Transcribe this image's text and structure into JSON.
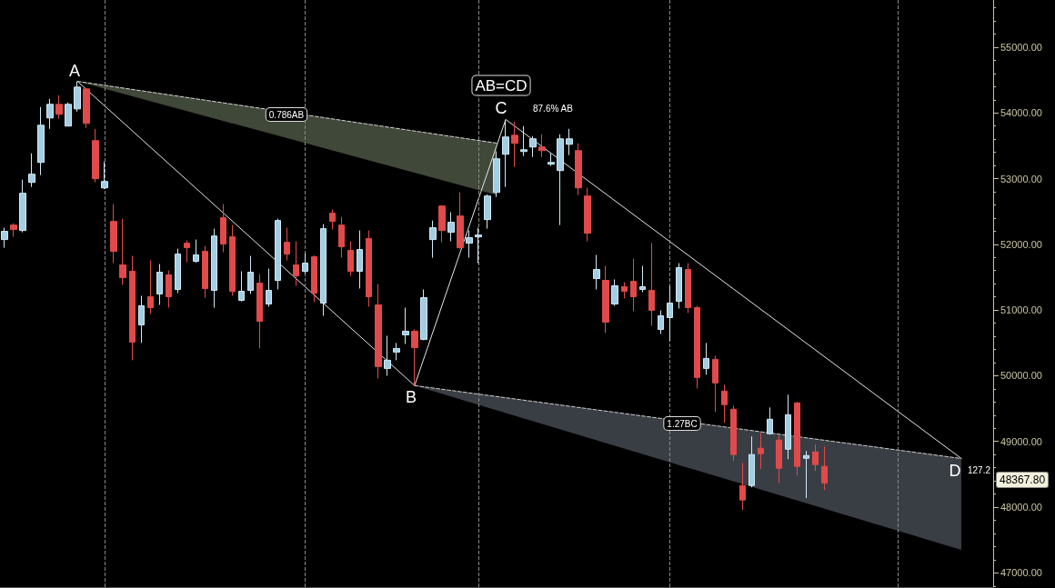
{
  "chart_data": {
    "type": "candlestick",
    "categories": [
      null,
      null,
      null,
      null,
      null,
      null,
      null,
      null,
      null,
      null,
      null,
      null,
      null,
      null,
      null,
      null,
      null,
      null,
      null,
      null,
      null,
      null,
      null,
      null,
      null,
      null,
      null,
      null,
      null,
      null,
      null,
      null,
      null,
      null,
      null,
      null,
      null,
      null,
      null,
      null,
      null,
      null,
      null,
      null,
      null,
      null,
      null,
      null,
      null,
      null,
      null,
      null,
      null,
      null,
      null,
      null,
      null,
      null,
      null,
      null,
      null,
      null,
      null,
      null,
      null,
      null,
      null,
      null,
      null,
      null,
      null,
      null,
      null,
      null,
      null,
      null,
      null,
      null,
      null,
      null,
      null,
      null,
      null,
      null,
      null,
      null,
      null,
      null,
      null,
      null,
      null,
      null,
      null,
      null,
      null,
      null,
      null,
      null,
      null,
      null,
      null,
      null,
      null,
      null,
      null,
      null,
      null,
      null,
      null
    ],
    "ohlc": [
      [
        52072,
        52252,
        51948,
        52197
      ],
      [
        52293,
        52321,
        52114,
        52224
      ],
      [
        52210,
        52984,
        52183,
        52777
      ],
      [
        52942,
        53384,
        52873,
        53067
      ],
      [
        53246,
        54089,
        53053,
        53812
      ],
      [
        53923,
        54213,
        53757,
        54130
      ],
      [
        54130,
        54268,
        53909,
        53978
      ],
      [
        53799,
        54158,
        53799,
        54130
      ],
      [
        54061,
        54475,
        54019,
        54392
      ],
      [
        54365,
        54380,
        53771,
        53840
      ],
      [
        53578,
        53757,
        52942,
        52998
      ],
      [
        52859,
        53260,
        52840,
        52956
      ],
      [
        52348,
        52611,
        51713,
        51893
      ],
      [
        51686,
        52390,
        51382,
        51492
      ],
      [
        51589,
        51824,
        50236,
        50512
      ],
      [
        50774,
        51216,
        50498,
        51064
      ],
      [
        51202,
        51755,
        50940,
        51036
      ],
      [
        51244,
        51699,
        51078,
        51575
      ],
      [
        51534,
        51603,
        51036,
        51202
      ],
      [
        51313,
        51934,
        51257,
        51851
      ],
      [
        52017,
        52058,
        51727,
        51948
      ],
      [
        51741,
        52072,
        51720,
        51838
      ],
      [
        51893,
        51976,
        51188,
        51327
      ],
      [
        51299,
        52238,
        51036,
        52127
      ],
      [
        52404,
        52611,
        51879,
        52003
      ],
      [
        52114,
        52293,
        51216,
        51285
      ],
      [
        51147,
        51589,
        51130,
        51285
      ],
      [
        51299,
        51824,
        51244,
        51575
      ],
      [
        51409,
        51548,
        50415,
        50829
      ],
      [
        51092,
        51630,
        51050,
        51299
      ],
      [
        51451,
        52390,
        51313,
        52362
      ],
      [
        52031,
        52252,
        51755,
        51851
      ],
      [
        51686,
        52045,
        51368,
        51520
      ],
      [
        51589,
        51865,
        51548,
        51713
      ],
      [
        51810,
        51830,
        51119,
        51257
      ],
      [
        51106,
        52307,
        50912,
        52238
      ],
      [
        52473,
        52528,
        52224,
        52348
      ],
      [
        52293,
        52418,
        51796,
        51962
      ],
      [
        51907,
        52045,
        51520,
        51589
      ],
      [
        51589,
        52210,
        51327,
        51920
      ],
      [
        52086,
        52210,
        51050,
        51202
      ],
      [
        51078,
        51396,
        49959,
        50139
      ],
      [
        50111,
        50608,
        49999,
        50236
      ],
      [
        50360,
        50498,
        50236,
        50415
      ],
      [
        50622,
        51036,
        50484,
        50677
      ],
      [
        50677,
        50705,
        49849,
        50429
      ],
      [
        50553,
        51313,
        50540,
        51188
      ],
      [
        52072,
        52362,
        51796,
        52252
      ],
      [
        52583,
        52597,
        52031,
        52210
      ],
      [
        52183,
        52487,
        52045,
        52335
      ],
      [
        52431,
        52790,
        51930,
        51948
      ],
      [
        52017,
        52210,
        51796,
        52100
      ],
      [
        52114,
        52252,
        51713,
        52141
      ],
      [
        52376,
        52760,
        52238,
        52735
      ],
      [
        52790,
        53412,
        52721,
        53301
      ],
      [
        53370,
        53895,
        52873,
        53633
      ],
      [
        53660,
        53868,
        53177,
        53536
      ],
      [
        53412,
        53799,
        53343,
        53439
      ],
      [
        53481,
        53647,
        53329,
        53605
      ],
      [
        53481,
        53674,
        53329,
        53426
      ],
      [
        53219,
        53384,
        53191,
        53246
      ],
      [
        53122,
        53674,
        52293,
        53605
      ],
      [
        53522,
        53757,
        53357,
        53605
      ],
      [
        53426,
        53536,
        52749,
        52859
      ],
      [
        52735,
        52859,
        52045,
        52169
      ],
      [
        51478,
        51838,
        51313,
        51616
      ],
      [
        51451,
        51672,
        50650,
        50816
      ],
      [
        51092,
        51465,
        51064,
        51368
      ],
      [
        51354,
        51423,
        51175,
        51285
      ],
      [
        51437,
        51782,
        50981,
        51202
      ],
      [
        51313,
        51672,
        51271,
        51354
      ],
      [
        51299,
        52017,
        50760,
        50995
      ],
      [
        50705,
        50995,
        50636,
        50912
      ],
      [
        50885,
        51368,
        50526,
        51106
      ],
      [
        51133,
        51713,
        51023,
        51644
      ],
      [
        51616,
        51713,
        50954,
        51036
      ],
      [
        51036,
        51064,
        49807,
        49973
      ],
      [
        50111,
        50498,
        50015,
        50263
      ],
      [
        50249,
        50305,
        49448,
        49890
      ],
      [
        49766,
        49863,
        49283,
        49559
      ],
      [
        49490,
        49545,
        48703,
        48800
      ],
      [
        48330,
        48675,
        47957,
        48109
      ],
      [
        48330,
        49075,
        48302,
        48800
      ],
      [
        48896,
        49131,
        48578,
        48813
      ],
      [
        49117,
        49517,
        49103,
        49338
      ],
      [
        49020,
        49089,
        48371,
        48592
      ],
      [
        48882,
        49711,
        48730,
        49407
      ],
      [
        49586,
        49600,
        48482,
        48620
      ],
      [
        48744,
        48855,
        48137,
        48785
      ],
      [
        48841,
        48951,
        48551,
        48647
      ],
      [
        48620,
        48924,
        48261,
        48367.8
      ],
      null,
      null,
      null,
      null,
      null,
      null,
      null,
      null,
      null,
      null,
      null,
      null,
      null,
      null,
      null,
      null,
      null,
      null
    ],
    "series": [
      {
        "type": "line",
        "color": "#e6e6e6",
        "values": [
          null,
          null,
          null,
          null,
          null,
          null,
          null,
          null,
          54480,
          null,
          null,
          null,
          null,
          null,
          null,
          null,
          null,
          null,
          null,
          null,
          null,
          null,
          null,
          null,
          null,
          null,
          null,
          null,
          null,
          null,
          null,
          null,
          null,
          null,
          null,
          null,
          null,
          null,
          null,
          null,
          null,
          null,
          null,
          null,
          null,
          49850,
          null,
          null,
          null,
          null,
          null,
          null,
          null,
          null,
          null,
          53900,
          null,
          null,
          null,
          null,
          null,
          null,
          null,
          null,
          null,
          null,
          null,
          null,
          null,
          null,
          null,
          null,
          null,
          null,
          null,
          null,
          null,
          null,
          null,
          null,
          null,
          null,
          null,
          null,
          null,
          null,
          null,
          null,
          null,
          null,
          null,
          null,
          null,
          null,
          null,
          null,
          null,
          null,
          null,
          null,
          null,
          null,
          null,
          null,
          null,
          48740,
          null,
          null,
          null
        ]
      },
      {
        "type": "line",
        "line_style": "dashed",
        "color": "#d8d8d8",
        "values": [
          null,
          null,
          null,
          null,
          null,
          null,
          null,
          null,
          54480,
          null,
          null,
          null,
          null,
          null,
          null,
          null,
          null,
          null,
          null,
          null,
          null,
          null,
          null,
          null,
          null,
          null,
          null,
          null,
          null,
          null,
          null,
          null,
          null,
          null,
          null,
          null,
          null,
          null,
          null,
          null,
          null,
          null,
          null,
          null,
          null,
          null,
          null,
          null,
          null,
          null,
          null,
          null,
          null,
          null,
          53540,
          null,
          null,
          null,
          null,
          null,
          null,
          null,
          null,
          null,
          null,
          null,
          null,
          null,
          null,
          null,
          null,
          null,
          null,
          null,
          null,
          null,
          null,
          null,
          null,
          null,
          null,
          null,
          null,
          null,
          null,
          null,
          null,
          null,
          null,
          null,
          null,
          null,
          null,
          null,
          null,
          null,
          null,
          null,
          null,
          null,
          null,
          null,
          null,
          null,
          null,
          null,
          null,
          null,
          null
        ],
        "upper": [
          null,
          null,
          null,
          null,
          null,
          null,
          null,
          null,
          54480,
          null,
          null,
          null,
          null,
          null,
          null,
          null,
          null,
          null,
          null,
          null,
          null,
          null,
          null,
          null,
          null,
          null,
          null,
          null,
          null,
          null,
          null,
          null,
          null,
          null,
          null,
          null,
          null,
          null,
          null,
          null,
          null,
          null,
          null,
          null,
          null,
          null,
          null,
          null,
          null,
          null,
          null,
          null,
          null,
          null,
          53540,
          null,
          null,
          null,
          null,
          null,
          null,
          null,
          null,
          null,
          null,
          null,
          null,
          null,
          null,
          null,
          null,
          null,
          null,
          null,
          null,
          null,
          null,
          null,
          null,
          null,
          null,
          null,
          null,
          null,
          null,
          null,
          null,
          null,
          null,
          null,
          null,
          null,
          null,
          null,
          null,
          null,
          null,
          null,
          null,
          null,
          null,
          null,
          null,
          null,
          null,
          null,
          null,
          null,
          null
        ],
        "lower": [
          null,
          null,
          null,
          null,
          null,
          null,
          null,
          null,
          54480,
          null,
          null,
          null,
          null,
          null,
          null,
          null,
          null,
          null,
          null,
          null,
          null,
          null,
          null,
          null,
          null,
          null,
          null,
          null,
          null,
          null,
          null,
          null,
          null,
          null,
          null,
          null,
          null,
          null,
          null,
          null,
          null,
          null,
          null,
          null,
          null,
          null,
          null,
          null,
          null,
          null,
          null,
          null,
          null,
          null,
          52750,
          null,
          null,
          null,
          null,
          null,
          null,
          null,
          null,
          null,
          null,
          null,
          null,
          null,
          null,
          null,
          null,
          null,
          null,
          null,
          null,
          null,
          null,
          null,
          null,
          null,
          null,
          null,
          null,
          null,
          null,
          null,
          null,
          null,
          null,
          null,
          null,
          null,
          null,
          null,
          null,
          null,
          null,
          null,
          null,
          null,
          null,
          null,
          null,
          null,
          null,
          null,
          null,
          null,
          null
        ]
      },
      {
        "type": "line",
        "line_style": "dashed",
        "color": "#d0d0d0",
        "values": [
          null,
          null,
          null,
          null,
          null,
          null,
          null,
          null,
          null,
          null,
          null,
          null,
          null,
          null,
          null,
          null,
          null,
          null,
          null,
          null,
          null,
          null,
          null,
          null,
          null,
          null,
          null,
          null,
          null,
          null,
          null,
          null,
          null,
          null,
          null,
          null,
          null,
          null,
          null,
          null,
          null,
          null,
          null,
          null,
          null,
          49850,
          null,
          null,
          null,
          null,
          null,
          null,
          null,
          null,
          null,
          null,
          null,
          null,
          null,
          null,
          null,
          null,
          null,
          null,
          null,
          null,
          null,
          null,
          null,
          null,
          null,
          null,
          null,
          null,
          null,
          null,
          null,
          null,
          null,
          null,
          null,
          null,
          null,
          null,
          null,
          null,
          null,
          null,
          null,
          null,
          null,
          null,
          null,
          null,
          null,
          null,
          null,
          null,
          null,
          null,
          null,
          null,
          null,
          null,
          null,
          48740,
          null,
          null,
          null
        ],
        "upper": [
          null,
          null,
          null,
          null,
          null,
          null,
          null,
          null,
          null,
          null,
          null,
          null,
          null,
          null,
          null,
          null,
          null,
          null,
          null,
          null,
          null,
          null,
          null,
          null,
          null,
          null,
          null,
          null,
          null,
          null,
          null,
          null,
          null,
          null,
          null,
          null,
          null,
          null,
          null,
          null,
          null,
          null,
          null,
          null,
          null,
          49850,
          null,
          null,
          null,
          null,
          null,
          null,
          null,
          null,
          null,
          null,
          null,
          null,
          null,
          null,
          null,
          null,
          null,
          null,
          null,
          null,
          null,
          null,
          null,
          null,
          null,
          null,
          null,
          null,
          null,
          null,
          null,
          null,
          null,
          null,
          null,
          null,
          null,
          null,
          null,
          null,
          null,
          null,
          null,
          null,
          null,
          null,
          null,
          null,
          null,
          null,
          null,
          null,
          null,
          null,
          null,
          null,
          null,
          null,
          null,
          48740,
          null,
          null,
          null
        ],
        "lower": [
          null,
          null,
          null,
          null,
          null,
          null,
          null,
          null,
          null,
          null,
          null,
          null,
          null,
          null,
          null,
          null,
          null,
          null,
          null,
          null,
          null,
          null,
          null,
          null,
          null,
          null,
          null,
          null,
          null,
          null,
          null,
          null,
          null,
          null,
          null,
          null,
          null,
          null,
          null,
          null,
          null,
          null,
          null,
          null,
          null,
          49850,
          null,
          null,
          null,
          null,
          null,
          null,
          null,
          null,
          null,
          null,
          null,
          null,
          null,
          null,
          null,
          null,
          null,
          null,
          null,
          null,
          null,
          null,
          null,
          null,
          null,
          null,
          null,
          null,
          null,
          null,
          null,
          null,
          null,
          null,
          null,
          null,
          null,
          null,
          null,
          null,
          null,
          null,
          null,
          null,
          null,
          null,
          null,
          null,
          null,
          null,
          null,
          null,
          null,
          null,
          null,
          null,
          null,
          null,
          null,
          47350,
          null,
          null,
          null
        ]
      }
    ],
    "ylim": [
      46783,
      55718
    ],
    "yticks": [
      {
        "value": 47000,
        "label": "47000.00"
      },
      {
        "value": 48000,
        "label": "48000.00"
      },
      {
        "value": 49000,
        "label": "49000.00"
      },
      {
        "value": 50000,
        "label": "50000.00"
      },
      {
        "value": 51000,
        "label": "51000.00"
      },
      {
        "value": 52000,
        "label": "52000.00"
      },
      {
        "value": 53000,
        "label": "53000.00"
      },
      {
        "value": 54000,
        "label": "54000.00"
      },
      {
        "value": 55000,
        "label": "55000.00"
      }
    ],
    "annotations": [
      "A",
      "B",
      "C",
      "D",
      "AB=CD",
      "87.6% AB",
      "0.786AB",
      "1.27BC",
      "127.2",
      "48367.80"
    ],
    "grid": "x",
    "tick_labels": "y"
  }
}
